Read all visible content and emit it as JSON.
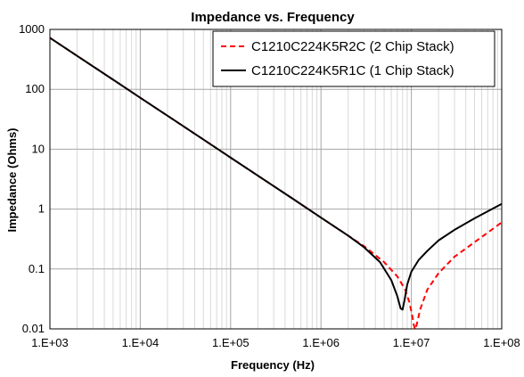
{
  "chart_data": {
    "type": "line",
    "title": "Impedance vs. Frequency",
    "xlabel": "Frequency (Hz)",
    "ylabel": "Impedance (Ohms)",
    "x_scale": "log",
    "y_scale": "log",
    "xlim": [
      1000,
      100000000
    ],
    "ylim": [
      0.01,
      1000
    ],
    "x_ticks": [
      "1.E+03",
      "1.E+04",
      "1.E+05",
      "1.E+06",
      "1.E+07",
      "1.E+08"
    ],
    "y_ticks": [
      "0.01",
      "0.1",
      "1",
      "10",
      "100",
      "1000"
    ],
    "grid": "major and minor (log)",
    "legend_position": "top-right",
    "series": [
      {
        "name": "C1210C224K5R2C (2 Chip Stack)",
        "color": "#ff0000",
        "style": "dashed",
        "x": [
          1000,
          2000,
          5000,
          10000,
          20000,
          50000,
          100000,
          200000,
          500000,
          1000000,
          2000000,
          3000000,
          5000000,
          7000000,
          8500000,
          9500000,
          10200000,
          10600000,
          11000000,
          11500000,
          12500000,
          15000000,
          20000000,
          30000000,
          50000000,
          100000000
        ],
        "y": [
          723,
          362,
          145,
          72.3,
          36.2,
          14.5,
          7.23,
          3.62,
          1.45,
          0.72,
          0.36,
          0.24,
          0.13,
          0.075,
          0.046,
          0.028,
          0.017,
          0.012,
          0.0098,
          0.012,
          0.021,
          0.045,
          0.085,
          0.16,
          0.28,
          0.6
        ]
      },
      {
        "name": "C1210C224K5R1C (1 Chip Stack)",
        "color": "#000000",
        "style": "solid",
        "x": [
          1000,
          2000,
          5000,
          10000,
          20000,
          50000,
          100000,
          200000,
          500000,
          1000000,
          2000000,
          3000000,
          4500000,
          6000000,
          7000000,
          7600000,
          8000000,
          8400000,
          9000000,
          10000000,
          12000000,
          15000000,
          20000000,
          30000000,
          50000000,
          100000000
        ],
        "y": [
          723,
          362,
          145,
          72.3,
          36.2,
          14.5,
          7.23,
          3.62,
          1.45,
          0.72,
          0.36,
          0.23,
          0.13,
          0.065,
          0.035,
          0.022,
          0.021,
          0.03,
          0.055,
          0.09,
          0.14,
          0.2,
          0.3,
          0.45,
          0.7,
          1.22
        ]
      }
    ]
  }
}
